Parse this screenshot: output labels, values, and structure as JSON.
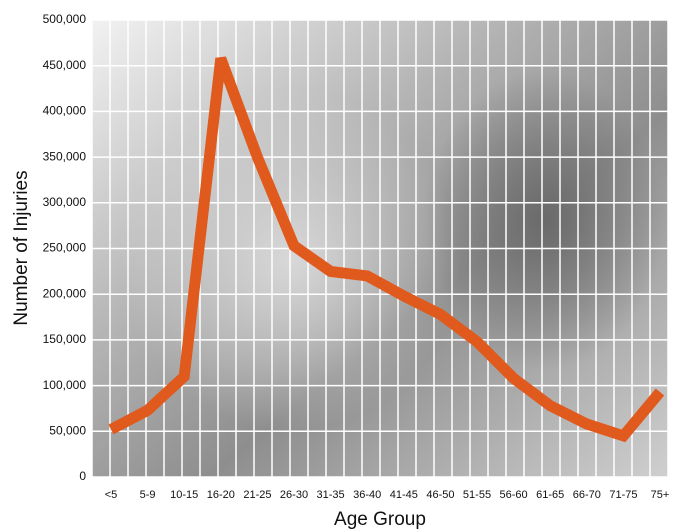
{
  "chart_data": {
    "type": "line",
    "x_label": "Age Group",
    "y_label": "Number of Injuries",
    "categories": [
      "<5",
      "5-9",
      "10-15",
      "16-20",
      "21-25",
      "26-30",
      "31-35",
      "36-40",
      "41-45",
      "46-50",
      "51-55",
      "56-60",
      "61-65",
      "66-70",
      "71-75",
      "75+"
    ],
    "values": [
      52000,
      73000,
      110000,
      458000,
      350000,
      253000,
      225000,
      220000,
      198000,
      178000,
      148000,
      108000,
      78000,
      58000,
      45000,
      93000
    ],
    "color": "#e05a1e",
    "ylim": [
      0,
      500000
    ],
    "yticks": [
      0,
      {
        "value": 50000,
        "label": "50,000"
      },
      {
        "value": 100000,
        "label": "100,000"
      },
      {
        "value": 150000,
        "label": "150,000"
      },
      {
        "value": 200000,
        "label": "200,000"
      },
      {
        "value": 250000,
        "label": "250,000"
      },
      {
        "value": 300000,
        "label": "300,000"
      },
      {
        "value": 350000,
        "label": "350,000"
      },
      {
        "value": 400000,
        "label": "400,000"
      },
      {
        "value": 450000,
        "label": "450,000"
      },
      {
        "value": 500000,
        "label": "500,000"
      }
    ],
    "grid": true
  }
}
